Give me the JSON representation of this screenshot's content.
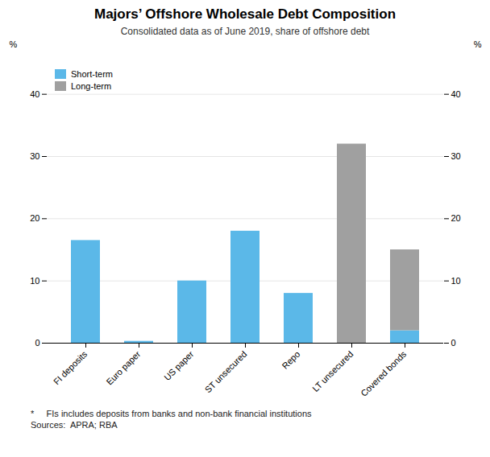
{
  "chart_data": {
    "type": "bar",
    "stacked": true,
    "title": "Majors’ Offshore Wholesale Debt Composition",
    "subtitle": "Consolidated data as of June 2019, share of offshore debt",
    "categories": [
      "FI deposits",
      "Euro paper",
      "US paper",
      "ST unsecured",
      "Repo",
      "LT unsecured",
      "Covered bonds"
    ],
    "series": [
      {
        "name": "Short-term",
        "color": "#5BB8E8",
        "values": [
          16.5,
          0.3,
          10.0,
          18.0,
          8.0,
          0.0,
          2.0
        ]
      },
      {
        "name": "Long-term",
        "color": "#A0A0A0",
        "values": [
          0.0,
          0.0,
          0.0,
          0.0,
          0.0,
          32.0,
          13.0
        ]
      }
    ],
    "ylim": [
      0,
      45
    ],
    "yticks": [
      0,
      10,
      20,
      30,
      40
    ],
    "ylabel": "%",
    "y2lim": [
      0,
      45
    ],
    "y2ticks": [
      0,
      10,
      20,
      30,
      40
    ],
    "y2label": "%",
    "grid": true,
    "legend": "upper left",
    "footnotes": [
      "*     FIs includes deposits from banks and non-bank financial institutions",
      "Sources:  APRA; RBA"
    ]
  }
}
